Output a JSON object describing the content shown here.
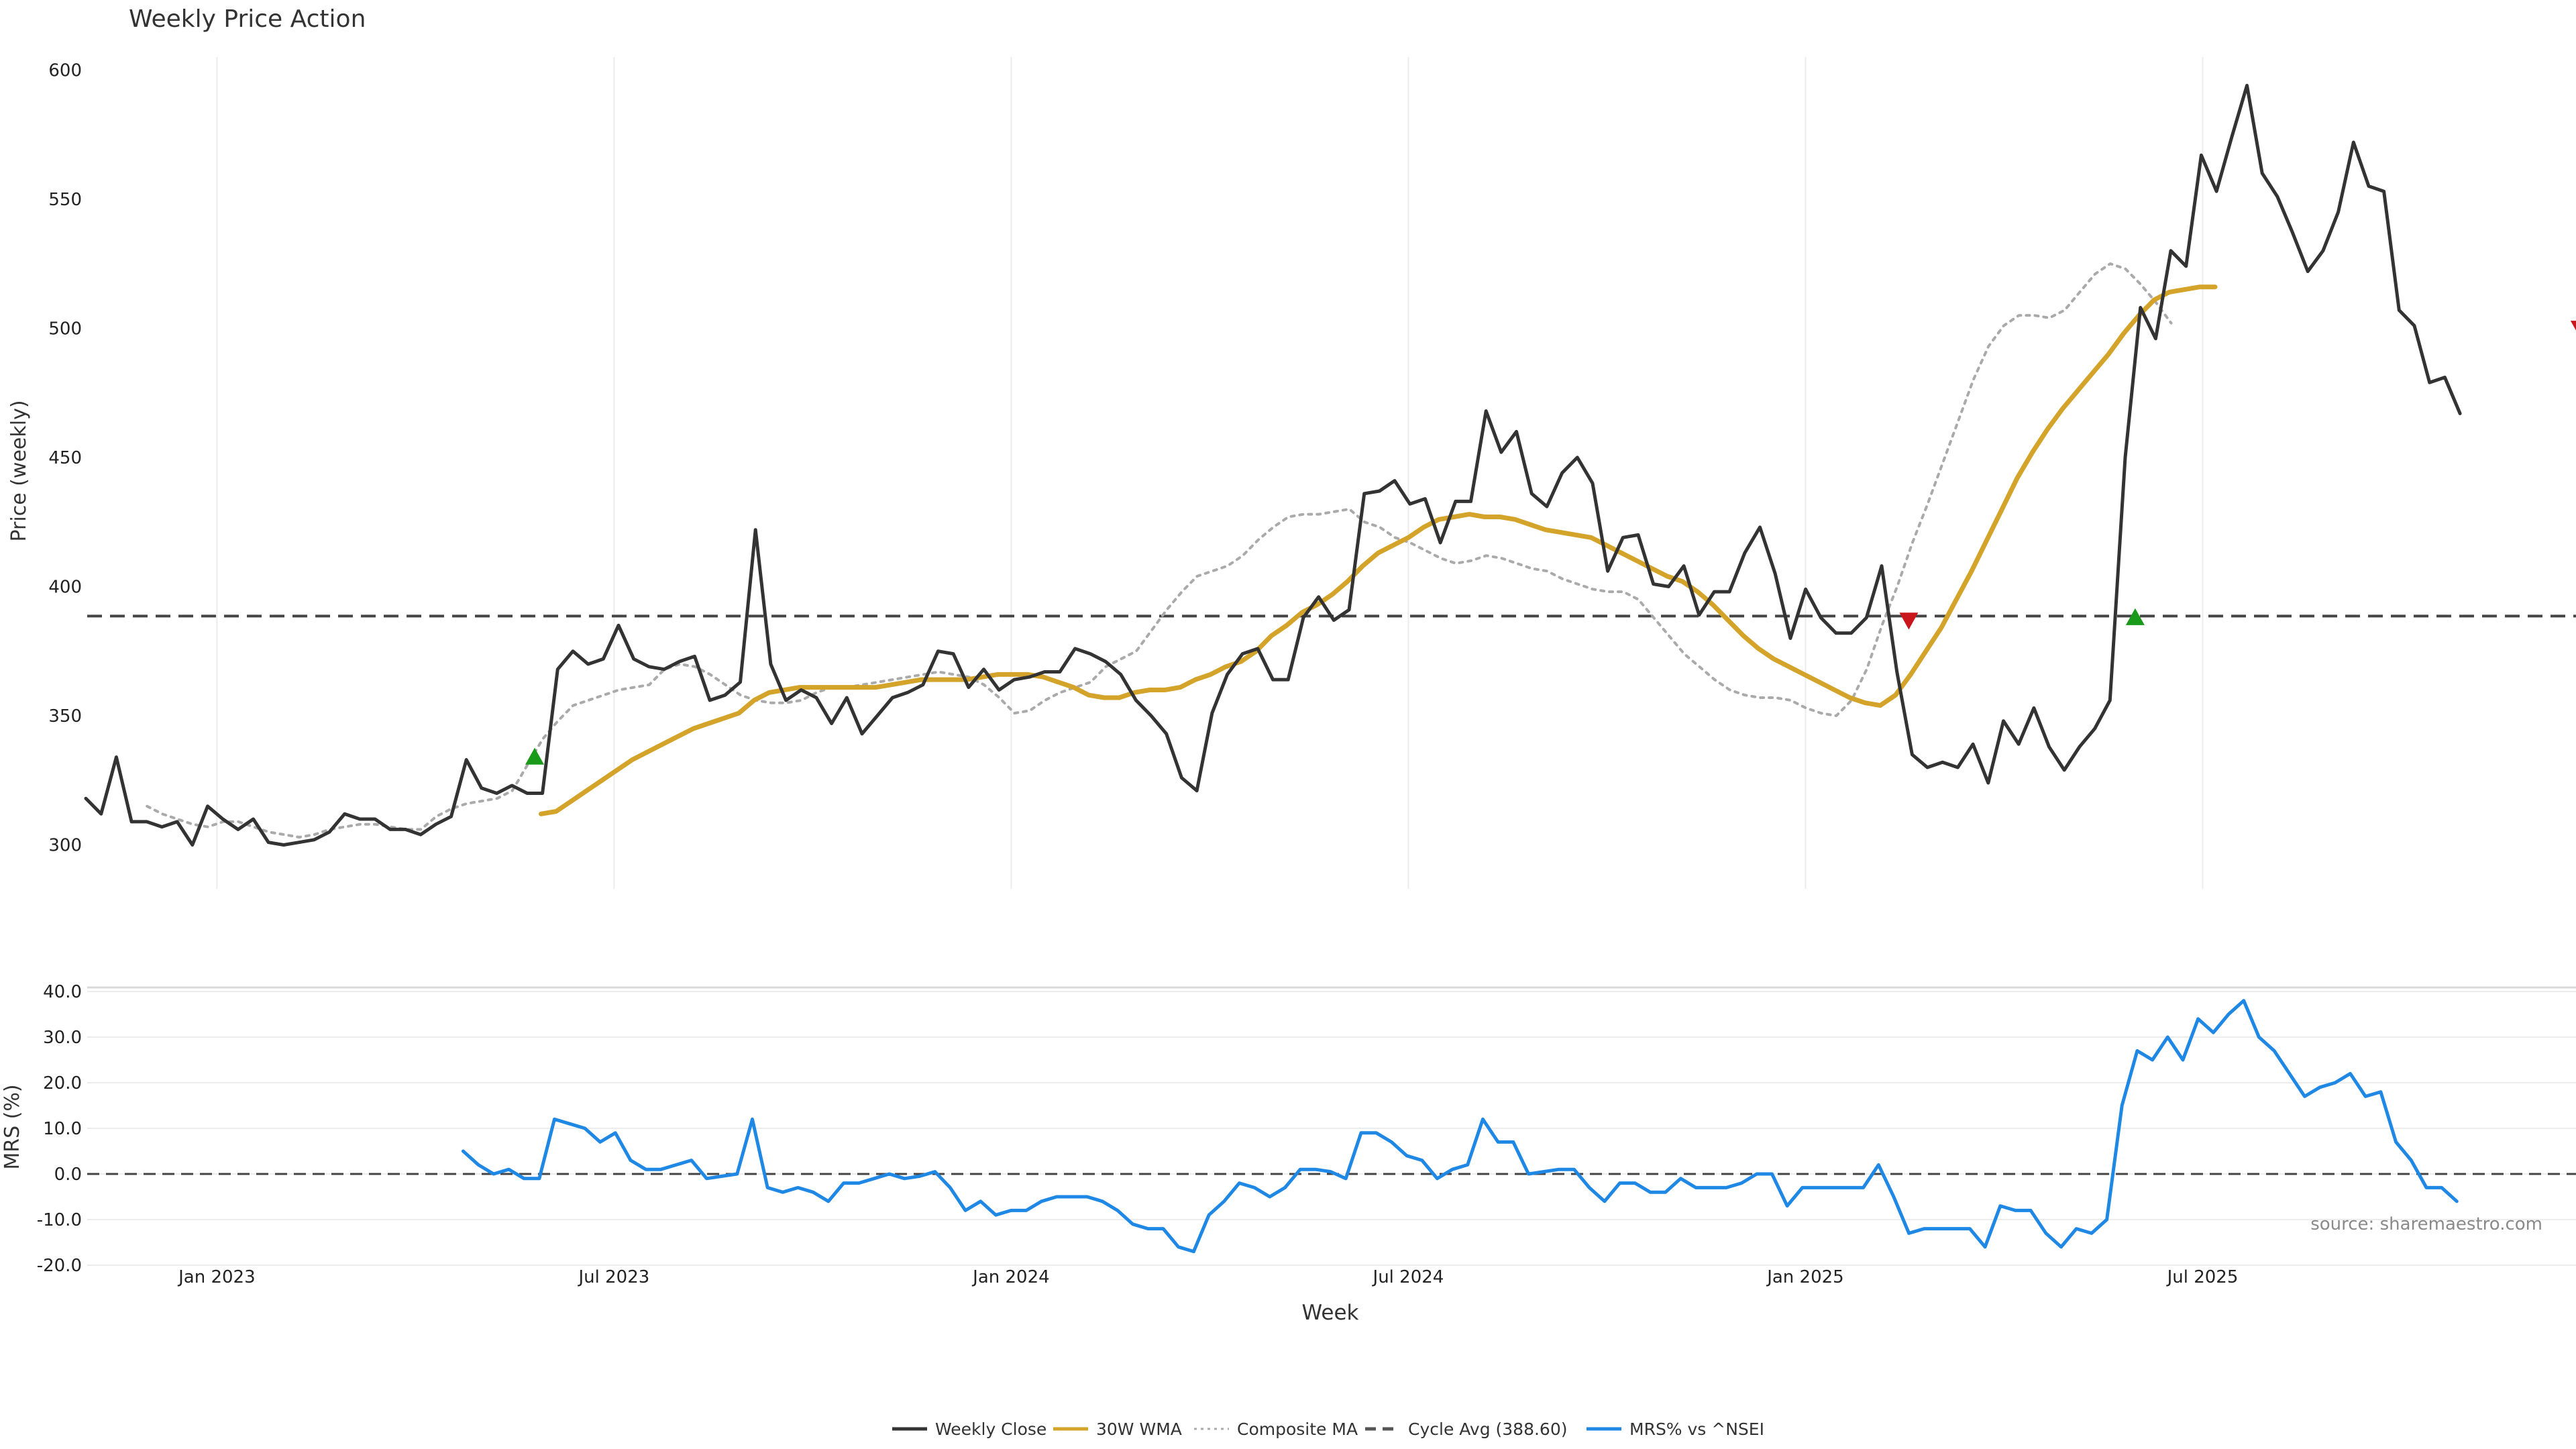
{
  "chart_data": {
    "type": "line",
    "title": "Weekly Price Action",
    "source": "source: sharemaestro.com",
    "xlabel": "Week",
    "x_ticks": [
      {
        "label": "Jan 2023",
        "t": 2023.0
      },
      {
        "label": "Jul 2023",
        "t": 2023.5
      },
      {
        "label": "Jan 2024",
        "t": 2024.0
      },
      {
        "label": "Jul 2024",
        "t": 2024.5
      },
      {
        "label": "Jan 2025",
        "t": 2025.0
      },
      {
        "label": "Jul 2025",
        "t": 2025.5
      }
    ],
    "xlim": [
      2022.835,
      2025.97
    ],
    "price_panel": {
      "ylabel": "Price (weekly)",
      "ylim": [
        283,
        605
      ],
      "y_ticks": [
        "300",
        "350",
        "400",
        "450",
        "500",
        "550",
        "600"
      ],
      "cycle_avg": 388.6,
      "series": [
        {
          "name": "Weekly Close",
          "color": "#333333",
          "start": 2022.835,
          "step": 0.01916,
          "values": [
            318,
            312,
            334,
            309,
            309,
            307,
            309,
            300,
            315,
            310,
            306,
            310,
            301,
            300,
            301,
            302,
            305,
            312,
            310,
            310,
            306,
            306,
            304,
            308,
            311,
            333,
            322,
            320,
            323,
            320,
            320,
            368,
            375,
            370,
            372,
            385,
            372,
            369,
            368,
            371,
            373,
            356,
            358,
            363,
            422,
            370,
            356,
            360,
            357,
            347,
            357,
            343,
            350,
            357,
            359,
            362,
            375,
            374,
            361,
            368,
            360,
            364,
            365,
            367,
            367,
            376,
            374,
            371,
            366,
            356,
            350,
            343,
            326,
            321,
            351,
            366,
            374,
            376,
            364,
            364,
            388,
            396,
            387,
            391,
            436,
            437,
            441,
            432,
            434,
            417,
            433,
            433,
            468,
            452,
            460,
            436,
            431,
            444,
            450,
            440,
            406,
            419,
            420,
            401,
            400,
            408,
            389,
            398,
            398,
            413,
            423,
            405,
            380,
            399,
            388,
            382,
            382,
            388,
            408,
            367,
            335,
            330,
            332,
            330,
            339,
            324,
            348,
            339,
            353,
            338,
            329,
            338,
            345,
            356,
            450,
            508,
            496,
            530,
            524,
            567,
            553,
            574,
            594,
            560,
            551,
            537,
            522,
            530,
            545,
            572,
            555,
            553,
            507,
            501,
            479,
            481,
            467
          ]
        },
        {
          "name": "30W WMA",
          "color": "#d4a32a",
          "start": 2023.408,
          "step": 0.01916,
          "values": [
            312,
            313,
            317,
            321,
            325,
            329,
            333,
            336,
            339,
            342,
            345,
            347,
            349,
            351,
            356,
            359,
            360,
            361,
            361,
            361,
            361,
            361,
            361,
            362,
            363,
            364,
            364,
            364,
            364,
            365,
            366,
            366,
            366,
            365,
            363,
            361,
            358,
            357,
            357,
            359,
            360,
            360,
            361,
            364,
            366,
            369,
            371,
            375,
            381,
            385,
            390,
            393,
            397,
            402,
            408,
            413,
            416,
            419,
            423,
            426,
            427,
            428,
            427,
            427,
            426,
            424,
            422,
            421,
            420,
            419,
            416,
            413,
            410,
            407,
            404,
            402,
            398,
            393,
            387,
            381,
            376,
            372,
            369,
            366,
            363,
            360,
            357,
            355,
            354,
            358,
            366,
            375,
            384,
            395,
            406,
            418,
            430,
            442,
            452,
            461,
            469,
            476,
            483,
            490,
            498,
            505,
            511,
            514,
            515,
            516,
            516
          ]
        },
        {
          "name": "Composite MA",
          "color": "#aaaaaa",
          "start": 2022.912,
          "step": 0.01916,
          "values": [
            315,
            312,
            310,
            308,
            307,
            309,
            309,
            307,
            305,
            304,
            303,
            304,
            306,
            307,
            308,
            308,
            307,
            306,
            306,
            311,
            314,
            316,
            317,
            318,
            321,
            331,
            341,
            348,
            354,
            356,
            358,
            360,
            361,
            362,
            368,
            370,
            369,
            366,
            362,
            358,
            356,
            355,
            355,
            356,
            359,
            361,
            361,
            362,
            363,
            364,
            365,
            366,
            367,
            366,
            365,
            362,
            357,
            351,
            352,
            356,
            359,
            361,
            363,
            369,
            372,
            375,
            383,
            391,
            398,
            404,
            406,
            408,
            412,
            418,
            423,
            427,
            428,
            428,
            429,
            430,
            425,
            423,
            419,
            417,
            414,
            411,
            409,
            410,
            412,
            411,
            409,
            407,
            406,
            403,
            401,
            399,
            398,
            398,
            395,
            388,
            381,
            374,
            369,
            364,
            360,
            358,
            357,
            357,
            356,
            353,
            351,
            350,
            356,
            368,
            385,
            400,
            417,
            432,
            448,
            464,
            480,
            493,
            501,
            505,
            505,
            504,
            507,
            514,
            521,
            525,
            523,
            517,
            510,
            502
          ]
        }
      ],
      "markers": [
        {
          "direction": "up",
          "color": "#1a9a1a",
          "x": 2023.4,
          "y": 334
        },
        {
          "direction": "down",
          "color": "#c8161c",
          "x": 2025.13,
          "y": 387
        },
        {
          "direction": "up",
          "color": "#1a9a1a",
          "x": 2025.415,
          "y": 388
        },
        {
          "direction": "down",
          "color": "#c8161c",
          "x": 2025.975,
          "y": 500
        }
      ]
    },
    "mrs_panel": {
      "ylabel": "MRS (%)",
      "ylim": [
        -20,
        40
      ],
      "y_ticks": [
        "-20.0",
        "-10.0",
        "0.0",
        "10.0",
        "20.0",
        "30.0",
        "40.0"
      ],
      "series": [
        {
          "name": "MRS% vs ^NSEI",
          "color": "#1f88e5",
          "start": 2023.31,
          "step": 0.01916,
          "values": [
            5,
            2,
            0,
            1,
            -1,
            -1,
            12,
            11,
            10,
            7,
            9,
            3,
            1,
            1,
            2,
            3,
            -1,
            -0.5,
            0,
            12,
            -3,
            -4,
            -3,
            -4,
            -6,
            -2,
            -2,
            -1,
            0,
            -1,
            -0.5,
            0.5,
            -3,
            -8,
            -6,
            -9,
            -8,
            -8,
            -6,
            -5,
            -5,
            -5,
            -6,
            -8,
            -11,
            -12,
            -12,
            -16,
            -17,
            -9,
            -6,
            -2,
            -3,
            -5,
            -3,
            1,
            1,
            0.5,
            -1,
            9,
            9,
            7,
            4,
            3,
            -1,
            1,
            2,
            12,
            7,
            7,
            0,
            0.5,
            1,
            1,
            -3,
            -6,
            -2,
            -2,
            -4,
            -4,
            -1,
            -3,
            -3,
            -3,
            -2,
            0,
            0,
            -7,
            -3,
            -3,
            -3,
            -3,
            -3,
            2,
            -5,
            -13,
            -12,
            -12,
            -12,
            -12,
            -16,
            -7,
            -8,
            -8,
            -13,
            -16,
            -12,
            -13,
            -10,
            15,
            27,
            25,
            30,
            25,
            34,
            31,
            35,
            38,
            30,
            27,
            22,
            17,
            19,
            20,
            22,
            17,
            18,
            7,
            3,
            -3,
            -3,
            -6
          ]
        }
      ]
    },
    "legend": [
      {
        "label": "Weekly Close",
        "style": "solid",
        "color": "#333333"
      },
      {
        "label": "30W WMA",
        "style": "solid",
        "color": "#d4a32a"
      },
      {
        "label": "Composite MA",
        "style": "dotted",
        "color": "#aaaaaa"
      },
      {
        "label": "Cycle Avg (388.60)",
        "style": "dashed",
        "color": "#555555"
      },
      {
        "label": "MRS% vs ^NSEI",
        "style": "solid",
        "color": "#1f88e5"
      }
    ]
  }
}
